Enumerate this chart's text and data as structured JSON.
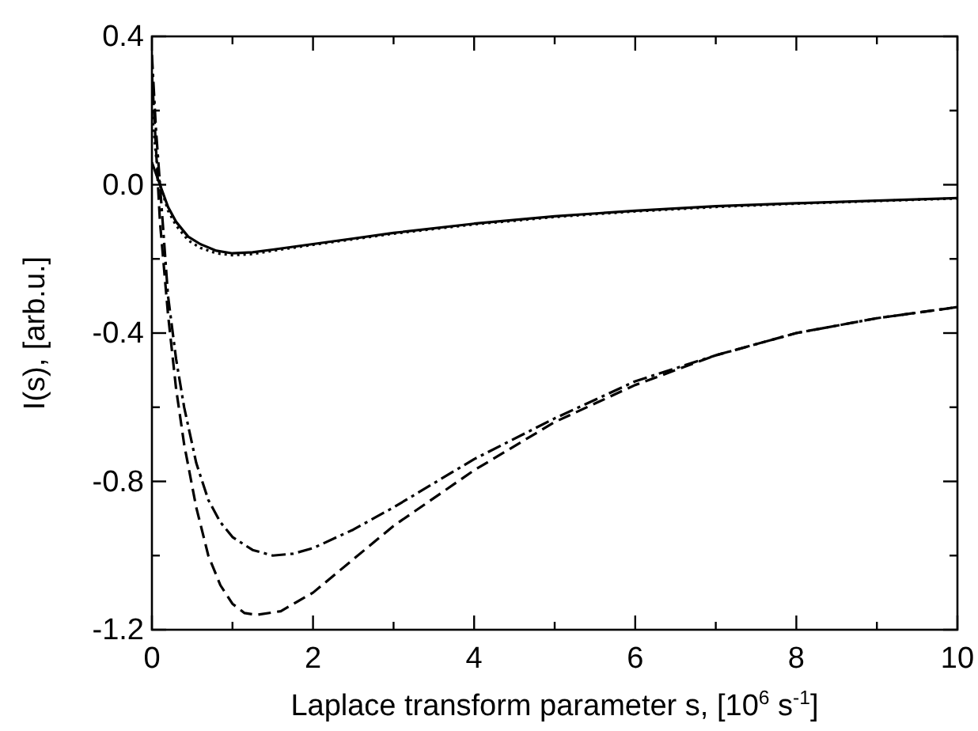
{
  "chart_data": {
    "type": "line",
    "xlabel": "Laplace transform parameter s, [10$^{6}$ s$^{-1}$]",
    "ylabel": "I(s), [arb.u.]",
    "xlim": [
      0,
      10
    ],
    "ylim": [
      -1.2,
      0.4
    ],
    "xticks": [
      0,
      {
        "value": 1,
        "label": null
      },
      2,
      {
        "value": 3,
        "label": null
      },
      4,
      {
        "value": 5,
        "label": null
      },
      6,
      {
        "value": 7,
        "label": null
      },
      8,
      {
        "value": 9,
        "label": null
      },
      10
    ],
    "yticks": [
      -1.2,
      {
        "value": -1.0,
        "label": null
      },
      -0.8,
      {
        "value": -0.6,
        "label": null
      },
      -0.4,
      {
        "value": -0.2,
        "label": null
      },
      {
        "value": 0,
        "label": "0.0"
      },
      {
        "value": 0.2,
        "label": null
      },
      0.4
    ],
    "grid": false,
    "series": [
      {
        "color": "#000000",
        "line_style": "solid",
        "x": [
          0,
          0.05,
          0.1,
          0.2,
          0.3,
          0.45,
          0.6,
          0.8,
          1.0,
          1.25,
          1.5,
          2,
          2.5,
          3,
          4,
          5,
          6,
          7,
          8,
          9,
          10
        ],
        "values": [
          0.06,
          0.03,
          0.0,
          -0.06,
          -0.1,
          -0.14,
          -0.16,
          -0.178,
          -0.185,
          -0.182,
          -0.175,
          -0.16,
          -0.145,
          -0.13,
          -0.105,
          -0.085,
          -0.07,
          -0.058,
          -0.05,
          -0.043,
          -0.036
        ]
      },
      {
        "color": "#000000",
        "line_style": "dotted",
        "x": [
          0,
          0.05,
          0.1,
          0.2,
          0.3,
          0.45,
          0.6,
          0.8,
          1.0,
          1.25,
          1.5,
          2,
          2.5,
          3,
          4,
          5,
          6,
          7,
          8,
          9,
          10
        ],
        "values": [
          0.2,
          0.08,
          0.0,
          -0.07,
          -0.11,
          -0.15,
          -0.17,
          -0.185,
          -0.19,
          -0.187,
          -0.178,
          -0.162,
          -0.147,
          -0.132,
          -0.107,
          -0.087,
          -0.072,
          -0.06,
          -0.051,
          -0.044,
          -0.037
        ]
      },
      {
        "color": "#000000",
        "line_style": "dashed",
        "x": [
          0,
          0.05,
          0.1,
          0.2,
          0.3,
          0.4,
          0.55,
          0.7,
          0.85,
          1.0,
          1.15,
          1.3,
          1.6,
          2,
          2.5,
          3,
          4,
          5,
          6,
          7,
          8,
          9,
          10
        ],
        "values": [
          0.3,
          0.1,
          -0.1,
          -0.35,
          -0.55,
          -0.7,
          -0.87,
          -1.0,
          -1.08,
          -1.13,
          -1.155,
          -1.16,
          -1.15,
          -1.1,
          -1.01,
          -0.92,
          -0.77,
          -0.64,
          -0.54,
          -0.46,
          -0.4,
          -0.36,
          -0.33
        ]
      },
      {
        "color": "#000000",
        "line_style": "dashdot",
        "x": [
          0,
          0.05,
          0.1,
          0.2,
          0.3,
          0.4,
          0.55,
          0.7,
          0.85,
          1.0,
          1.25,
          1.5,
          1.75,
          2,
          2.5,
          3,
          4,
          5,
          6,
          7,
          8,
          9,
          10
        ],
        "values": [
          0.35,
          0.15,
          0.0,
          -0.3,
          -0.47,
          -0.6,
          -0.75,
          -0.85,
          -0.91,
          -0.95,
          -0.985,
          -1.0,
          -0.995,
          -0.98,
          -0.93,
          -0.87,
          -0.74,
          -0.63,
          -0.53,
          -0.46,
          -0.4,
          -0.36,
          -0.33
        ]
      }
    ]
  }
}
